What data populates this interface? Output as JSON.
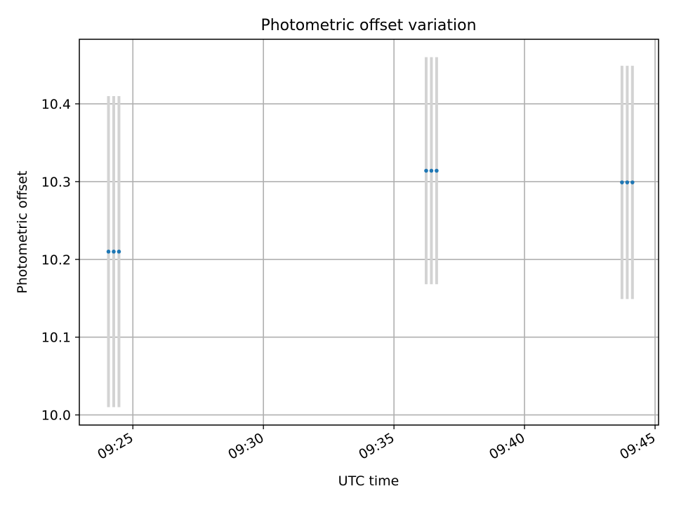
{
  "chart_data": {
    "type": "scatter",
    "title": "Photometric offset variation",
    "xlabel": "UTC time",
    "ylabel": "Photometric offset",
    "grid": true,
    "xlim": [
      "09:22:57",
      "09:45:08"
    ],
    "ylim": [
      9.987,
      10.483
    ],
    "x_ticks": [
      "09:25",
      "09:30",
      "09:35",
      "09:40",
      "09:45"
    ],
    "y_ticks": [
      "10.0",
      "10.1",
      "10.2",
      "10.3",
      "10.4"
    ],
    "point_color": "#1f77b4",
    "errorbar_color": "#d3d3d3",
    "points": [
      {
        "time": "09:24:04",
        "offset": 10.21,
        "error": 0.2
      },
      {
        "time": "09:24:16",
        "offset": 10.21,
        "error": 0.2
      },
      {
        "time": "09:24:28",
        "offset": 10.21,
        "error": 0.2
      },
      {
        "time": "09:36:14",
        "offset": 10.314,
        "error": 0.146
      },
      {
        "time": "09:36:26",
        "offset": 10.314,
        "error": 0.146
      },
      {
        "time": "09:36:38",
        "offset": 10.314,
        "error": 0.146
      },
      {
        "time": "09:43:44",
        "offset": 10.299,
        "error": 0.15
      },
      {
        "time": "09:43:56",
        "offset": 10.299,
        "error": 0.15
      },
      {
        "time": "09:44:08",
        "offset": 10.299,
        "error": 0.15
      }
    ]
  }
}
